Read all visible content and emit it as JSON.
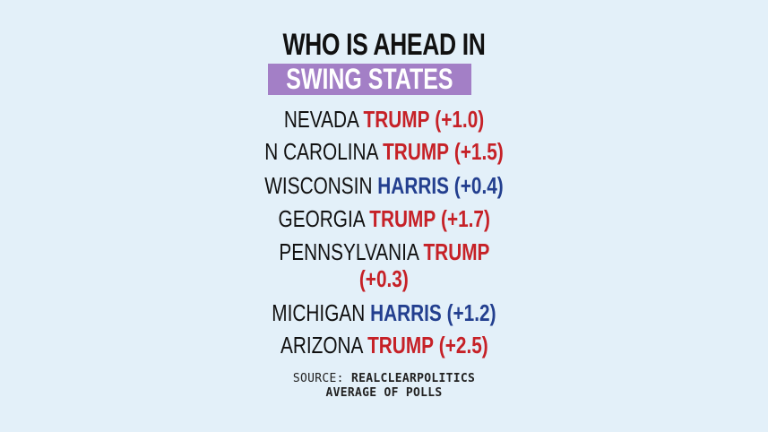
{
  "title": {
    "line1": "WHO IS AHEAD IN",
    "banner": "SWING STATES"
  },
  "states": [
    {
      "name": "NEVADA",
      "leader": "TRUMP",
      "margin": "(+1.0)",
      "party": "trump"
    },
    {
      "name": "N CAROLINA",
      "leader": "TRUMP",
      "margin": "(+1.5)",
      "party": "trump"
    },
    {
      "name": "WISCONSIN",
      "leader": "HARRIS",
      "margin": "(+0.4)",
      "party": "harris"
    },
    {
      "name": "GEORGIA",
      "leader": "TRUMP",
      "margin": "(+1.7)",
      "party": "trump"
    },
    {
      "name": "PENNSYLVANIA",
      "leader": "TRUMP",
      "margin": "(+0.3)",
      "party": "trump"
    },
    {
      "name": "MICHIGAN",
      "leader": "HARRIS",
      "margin": "(+1.2)",
      "party": "harris"
    },
    {
      "name": "ARIZONA",
      "leader": "TRUMP",
      "margin": "(+2.5)",
      "party": "trump"
    }
  ],
  "source": {
    "prefix": "SOURCE:",
    "name": "REALCLEARPOLITICS",
    "line2": "AVERAGE OF POLLS"
  },
  "colors": {
    "background": "#e3f0f9",
    "banner": "#a37fc6",
    "trump": "#c62127",
    "harris": "#233f8f"
  }
}
